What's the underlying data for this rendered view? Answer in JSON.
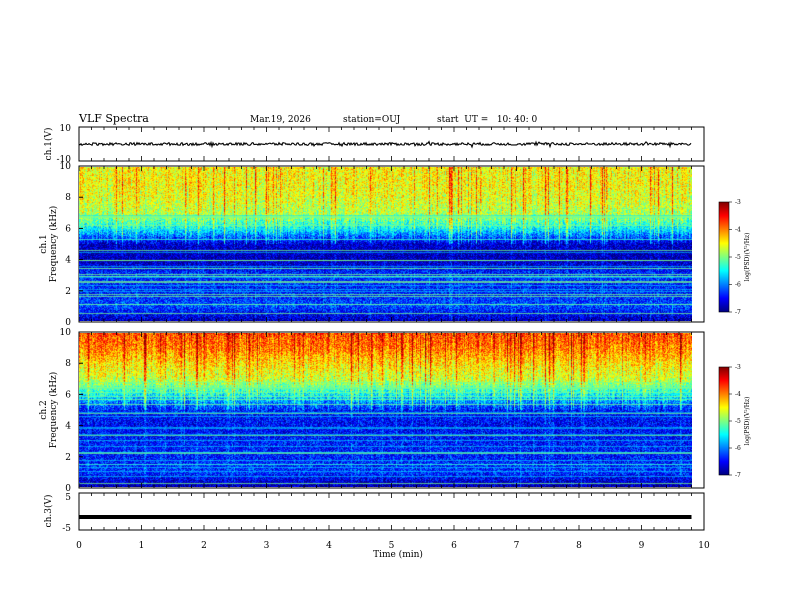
{
  "header": {
    "title": "VLF Spectra",
    "date": "Mar.19, 2026",
    "station": "station=OUJ",
    "start": "start  UT =   10: 40: 0"
  },
  "panels": {
    "ch1_wave": {
      "label": "ch.1(V)",
      "y_ticks": [
        "10",
        "-10"
      ]
    },
    "ch1_spec": {
      "label": "ch.1",
      "ylabel": "Frequency (kHz)",
      "y_ticks": [
        "0",
        "2",
        "4",
        "6",
        "8",
        "10"
      ]
    },
    "ch2_spec": {
      "label": "ch.2",
      "ylabel": "Frequency (kHz)",
      "y_ticks": [
        "0",
        "2",
        "4",
        "6",
        "8",
        "10"
      ]
    },
    "ch3_wave": {
      "label": "ch.3(V)",
      "y_ticks": [
        "5",
        "-5"
      ]
    }
  },
  "colorbars": [
    {
      "label": "log(PSD)(V²/Hz)",
      "ticks": [
        "-3",
        "-4",
        "-5",
        "-6",
        "-7"
      ]
    },
    {
      "label": "log(PSD)(V²/Hz)",
      "ticks": [
        "-3",
        "-4",
        "-5",
        "-6",
        "-7"
      ]
    }
  ],
  "x_axis": {
    "label": "Time (min)",
    "ticks": [
      "0",
      "1",
      "2",
      "3",
      "4",
      "5",
      "6",
      "7",
      "8",
      "9",
      "10"
    ]
  },
  "colors": {
    "jet_low": "#00007f",
    "jet_mid": "#7fff7f",
    "jet_high": "#7f0000"
  },
  "chart_data": [
    {
      "type": "line",
      "name": "ch.1 waveform",
      "xlabel": "Time (min)",
      "ylabel": "ch.1(V)",
      "xlim": [
        0,
        10
      ],
      "ylim": [
        -10,
        10
      ],
      "x": [
        0,
        1,
        2,
        3,
        4,
        5,
        6,
        7,
        8,
        9,
        9.8
      ],
      "y": [
        0,
        0,
        0,
        0,
        0,
        0,
        0,
        0,
        0,
        0,
        0
      ]
    },
    {
      "type": "heatmap",
      "name": "ch.1 spectrogram",
      "xlabel": "Time (min)",
      "ylabel": "Frequency (kHz)",
      "xlim": [
        0,
        10
      ],
      "ylim": [
        0,
        10
      ],
      "clim": [
        -7,
        -3
      ],
      "x": [
        0,
        1,
        2,
        3,
        4,
        5,
        6,
        7,
        8,
        9,
        9.8
      ],
      "freq_kHz": [
        0,
        1,
        2,
        3,
        4,
        5,
        6,
        7,
        8,
        9,
        10
      ],
      "log_psd_profile": [
        -6.8,
        -6.2,
        -6.4,
        -6.3,
        -6.8,
        -6.7,
        -5.5,
        -4.8,
        -4.6,
        -4.5,
        -4.5
      ]
    },
    {
      "type": "heatmap",
      "name": "ch.2 spectrogram",
      "xlabel": "Time (min)",
      "ylabel": "Frequency (kHz)",
      "xlim": [
        0,
        10
      ],
      "ylim": [
        0,
        10
      ],
      "clim": [
        -7,
        -3
      ],
      "x": [
        0,
        1,
        2,
        3,
        4,
        5,
        6,
        7,
        8,
        9,
        9.8
      ],
      "freq_kHz": [
        0,
        1,
        2,
        3,
        4,
        5,
        6,
        7,
        8,
        9,
        10
      ],
      "log_psd_profile": [
        -6.9,
        -6.3,
        -6.4,
        -6.4,
        -6.5,
        -6.4,
        -5.5,
        -4.7,
        -4.4,
        -4.0,
        -3.8
      ]
    },
    {
      "type": "line",
      "name": "ch.3 waveform",
      "xlabel": "Time (min)",
      "ylabel": "ch.3(V)",
      "xlim": [
        0,
        10
      ],
      "ylim": [
        -5,
        5
      ],
      "x": [
        0,
        9.8
      ],
      "y": [
        -1.5,
        -1.5
      ]
    }
  ]
}
